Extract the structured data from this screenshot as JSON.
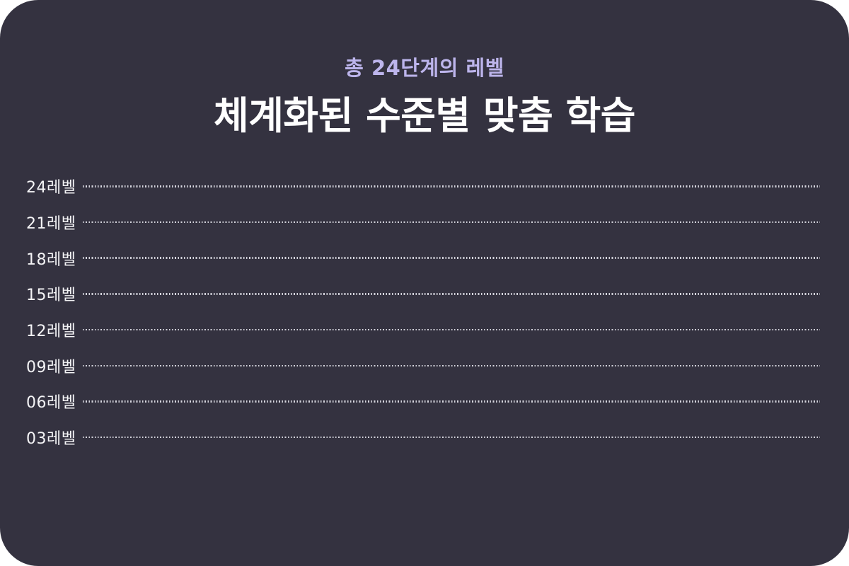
{
  "colors": {
    "page_background": "#ffffff",
    "card_background": "#343240",
    "subtitle_text": "#bdb5ec",
    "title_text": "#ffffff",
    "level_label_text": "#f4f4f6",
    "dotted_line": "#d6d6de"
  },
  "header": {
    "subtitle": "총 24단계의 레벨",
    "title": "체계화된 수준별 맞춤 학습"
  },
  "levels": {
    "rows": [
      {
        "label": "24레벨"
      },
      {
        "label": "21레벨"
      },
      {
        "label": "18레벨"
      },
      {
        "label": "15레벨"
      },
      {
        "label": "12레벨"
      },
      {
        "label": "09레벨"
      },
      {
        "label": "06레벨"
      },
      {
        "label": "03레벨"
      }
    ]
  }
}
